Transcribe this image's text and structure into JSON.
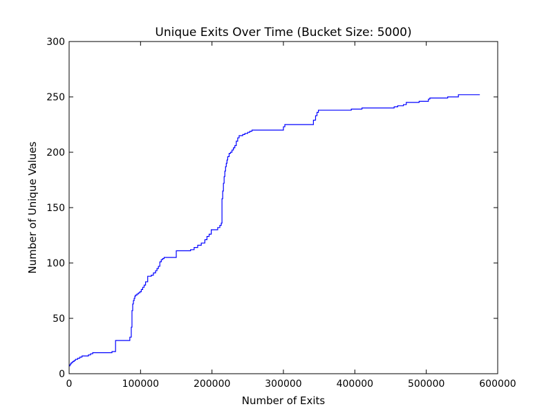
{
  "chart_data": {
    "type": "line",
    "title": "Unique Exits Over Time (Bucket Size: 5000)",
    "xlabel": "Number of Exits",
    "ylabel": "Number of Unique Values",
    "xlim": [
      0,
      600000
    ],
    "ylim": [
      0,
      300
    ],
    "xticks": [
      0,
      100000,
      200000,
      300000,
      400000,
      500000,
      600000
    ],
    "xtick_labels": [
      "0",
      "100000",
      "200000",
      "300000",
      "400000",
      "500000",
      "600000"
    ],
    "yticks": [
      0,
      50,
      100,
      150,
      200,
      250,
      300
    ],
    "ytick_labels": [
      "0",
      "50",
      "100",
      "150",
      "200",
      "250",
      "300"
    ],
    "grid": false,
    "line_style": "step",
    "series": [
      {
        "color": "#0000ff",
        "x": [
          0,
          1000,
          2000,
          3000,
          5000,
          7000,
          9000,
          12000,
          15000,
          18000,
          22000,
          27000,
          30000,
          33000,
          60000,
          65000,
          85000,
          87000,
          88000,
          89000,
          90000,
          91000,
          92000,
          93000,
          95000,
          97000,
          99000,
          101000,
          103000,
          105000,
          107000,
          110000,
          115000,
          118000,
          121000,
          123000,
          125000,
          127000,
          129000,
          131000,
          133000,
          135000,
          150000,
          170000,
          175000,
          180000,
          185000,
          190000,
          193000,
          196000,
          199000,
          205000,
          208000,
          211000,
          213000,
          214000,
          215000,
          216000,
          217000,
          218000,
          219000,
          220000,
          221000,
          222000,
          224000,
          226000,
          228000,
          230000,
          232000,
          234000,
          236000,
          238000,
          240000,
          243000,
          246000,
          250000,
          253000,
          256000,
          258000,
          300000,
          302000,
          342000,
          345000,
          347000,
          349000,
          395000,
          410000,
          455000,
          460000,
          468000,
          472000,
          490000,
          500000,
          503000,
          505000,
          530000,
          545000,
          575000
        ],
        "values": [
          7,
          8,
          9,
          10,
          11,
          12,
          13,
          14,
          15,
          16,
          16,
          17,
          18,
          19,
          20,
          30,
          33,
          42,
          57,
          63,
          66,
          68,
          70,
          71,
          72,
          73,
          74,
          76,
          78,
          80,
          83,
          88,
          89,
          91,
          93,
          95,
          97,
          101,
          103,
          104,
          105,
          105,
          111,
          112,
          114,
          116,
          118,
          121,
          124,
          126,
          130,
          130,
          132,
          134,
          136,
          158,
          165,
          172,
          178,
          183,
          187,
          190,
          193,
          196,
          199,
          200,
          202,
          204,
          206,
          210,
          213,
          215,
          215,
          216,
          217,
          218,
          219,
          220,
          220,
          223,
          225,
          229,
          233,
          236,
          238,
          239,
          240,
          241,
          242,
          243,
          245,
          246,
          246,
          248,
          249,
          250,
          252,
          252
        ]
      }
    ]
  }
}
